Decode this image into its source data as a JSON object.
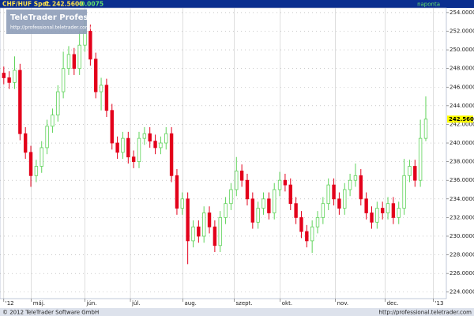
{
  "chart_data": {
    "type": "candlestick",
    "instrument": "CHF/HUF Spot",
    "price_tag": "C.",
    "change": -0.0075,
    "frequency": "naponta",
    "last_price": {
      "value": 242.56,
      "label": "242.5600"
    },
    "logo_title": "TeleTrader Professional",
    "logo_url": "http://professional.teletrader.com/",
    "footer_left": "© 2012 TeleTrader Software GmbH",
    "footer_right": "http://professional.teletrader.com",
    "up_color": "#5fd35a",
    "down_color": "#e3001b",
    "grid": true,
    "xlim": [
      -0.7,
      81.8
    ],
    "xticks": [
      {
        "value": 0,
        "label": "'12"
      },
      {
        "value": 5.1,
        "label": "máj."
      },
      {
        "value": 15,
        "label": "jún."
      },
      {
        "value": 23.4,
        "label": "júl."
      },
      {
        "value": 33.1,
        "label": "aug."
      },
      {
        "value": 42.6,
        "label": "szept."
      },
      {
        "value": 51.1,
        "label": "okt."
      },
      {
        "value": 61.3,
        "label": "nov."
      },
      {
        "value": 70.5,
        "label": "dec."
      },
      {
        "value": 79.4,
        "label": "'13"
      }
    ],
    "ylim": [
      223.3,
      254.5
    ],
    "yticks": [
      {
        "value": 224,
        "label": "224.0000"
      },
      {
        "value": 226,
        "label": "226.0000"
      },
      {
        "value": 228,
        "label": "228.0000"
      },
      {
        "value": 230,
        "label": "230.0000"
      },
      {
        "value": 232,
        "label": "232.0000"
      },
      {
        "value": 234,
        "label": "234.0000"
      },
      {
        "value": 236,
        "label": "236.0000"
      },
      {
        "value": 238,
        "label": "238.0000"
      },
      {
        "value": 240,
        "label": "240.0000"
      },
      {
        "value": 242,
        "label": "242.0000"
      },
      {
        "value": 244,
        "label": "244.0000"
      },
      {
        "value": 246,
        "label": "246.0000"
      },
      {
        "value": 248,
        "label": "248.0000"
      },
      {
        "value": 250,
        "label": "250.0000"
      },
      {
        "value": 252,
        "label": "252.0000"
      },
      {
        "value": 254,
        "label": "254.0000"
      }
    ],
    "open": [
      247.5,
      247,
      246.5,
      247.8,
      241,
      239,
      236.5,
      237.5,
      239.5,
      241.8,
      243,
      245.5,
      248,
      249.5,
      248,
      250.5,
      252,
      249,
      245.5,
      246.2,
      243.5,
      240,
      239,
      240.5,
      238.5,
      238,
      240.5,
      241,
      240.2,
      239.5,
      240,
      241,
      236.5,
      233,
      234,
      229.5,
      231,
      230,
      232.5,
      231,
      229,
      232,
      233.5,
      235,
      237,
      236,
      234,
      231.5,
      233,
      234,
      232.5,
      235,
      236,
      235.5,
      233.5,
      232,
      230.5,
      229.5,
      231,
      232,
      233.5,
      235.5,
      234,
      233,
      235,
      236,
      236.5,
      234,
      232.5,
      231.5,
      233,
      232.5,
      233.5,
      232,
      233,
      236.5,
      237.5,
      236,
      240.5
    ],
    "high": [
      248.2,
      247.7,
      249.3,
      248.5,
      241.7,
      239.7,
      238.2,
      240.2,
      242.5,
      243.7,
      246.2,
      249.8,
      250.4,
      250.2,
      252,
      253.6,
      252.7,
      249.7,
      247,
      246.9,
      244.2,
      240.7,
      241.2,
      241.2,
      239.2,
      241.2,
      241.7,
      241.7,
      240.9,
      240.7,
      241.7,
      241.7,
      237.2,
      234.7,
      234.7,
      231.7,
      231.7,
      233.2,
      233.2,
      231.7,
      232.7,
      234.2,
      235.7,
      238.5,
      237.7,
      236.7,
      234.7,
      233.7,
      234.7,
      234.7,
      235.7,
      236.9,
      236.7,
      236.2,
      234.2,
      232.7,
      231.2,
      231.7,
      232.7,
      234.2,
      236.2,
      236.2,
      234.7,
      235.7,
      236.7,
      237.8,
      237.2,
      234.7,
      233.2,
      233.7,
      233.7,
      234.2,
      234.2,
      233.7,
      238.3,
      238.2,
      238.2,
      242.5,
      245
    ],
    "low": [
      246.3,
      245.8,
      245.8,
      240.3,
      238.3,
      235.3,
      235.8,
      236.8,
      238.8,
      241.1,
      242.3,
      244.8,
      247.3,
      247.3,
      247.3,
      249.8,
      248.3,
      244.8,
      243.5,
      242.8,
      239.3,
      238.3,
      238.3,
      237.8,
      237.3,
      237.3,
      239.8,
      239.5,
      238.8,
      238.8,
      239.3,
      235.8,
      232.3,
      232.3,
      227,
      228.8,
      229.3,
      229.3,
      230.3,
      228.3,
      228.3,
      231.3,
      232.8,
      234.3,
      235.3,
      233.3,
      230.8,
      230.8,
      232.3,
      231.8,
      231.8,
      234.3,
      234.8,
      232.8,
      231.3,
      229.8,
      228.8,
      228.2,
      230.3,
      231.3,
      232.8,
      233.3,
      232.3,
      232.3,
      234.3,
      235.3,
      233.3,
      231.8,
      230.8,
      230.8,
      231.8,
      231.8,
      231.3,
      231.3,
      232.3,
      235.8,
      235.3,
      235.3,
      240.2
    ],
    "close": [
      247,
      246.5,
      247.8,
      241,
      239,
      236.5,
      237.5,
      239.5,
      241.8,
      243,
      245.5,
      248,
      249.5,
      248,
      250.5,
      252,
      249,
      245.5,
      246.2,
      243.5,
      240,
      239,
      240.5,
      238.5,
      238,
      240.5,
      241,
      240.2,
      239.5,
      240,
      241,
      236.5,
      233,
      234,
      229.5,
      231,
      230,
      232.5,
      231,
      229,
      232,
      233.5,
      235,
      237,
      236,
      234,
      231.5,
      233,
      234,
      232.5,
      235,
      236,
      235.5,
      233.5,
      232,
      230.5,
      229.5,
      231,
      232,
      233.5,
      235.5,
      234,
      233,
      235,
      236,
      236.5,
      234,
      232.5,
      231.5,
      233,
      232.5,
      233.5,
      232,
      233,
      236.5,
      237.5,
      236,
      240.5,
      242.56
    ]
  }
}
